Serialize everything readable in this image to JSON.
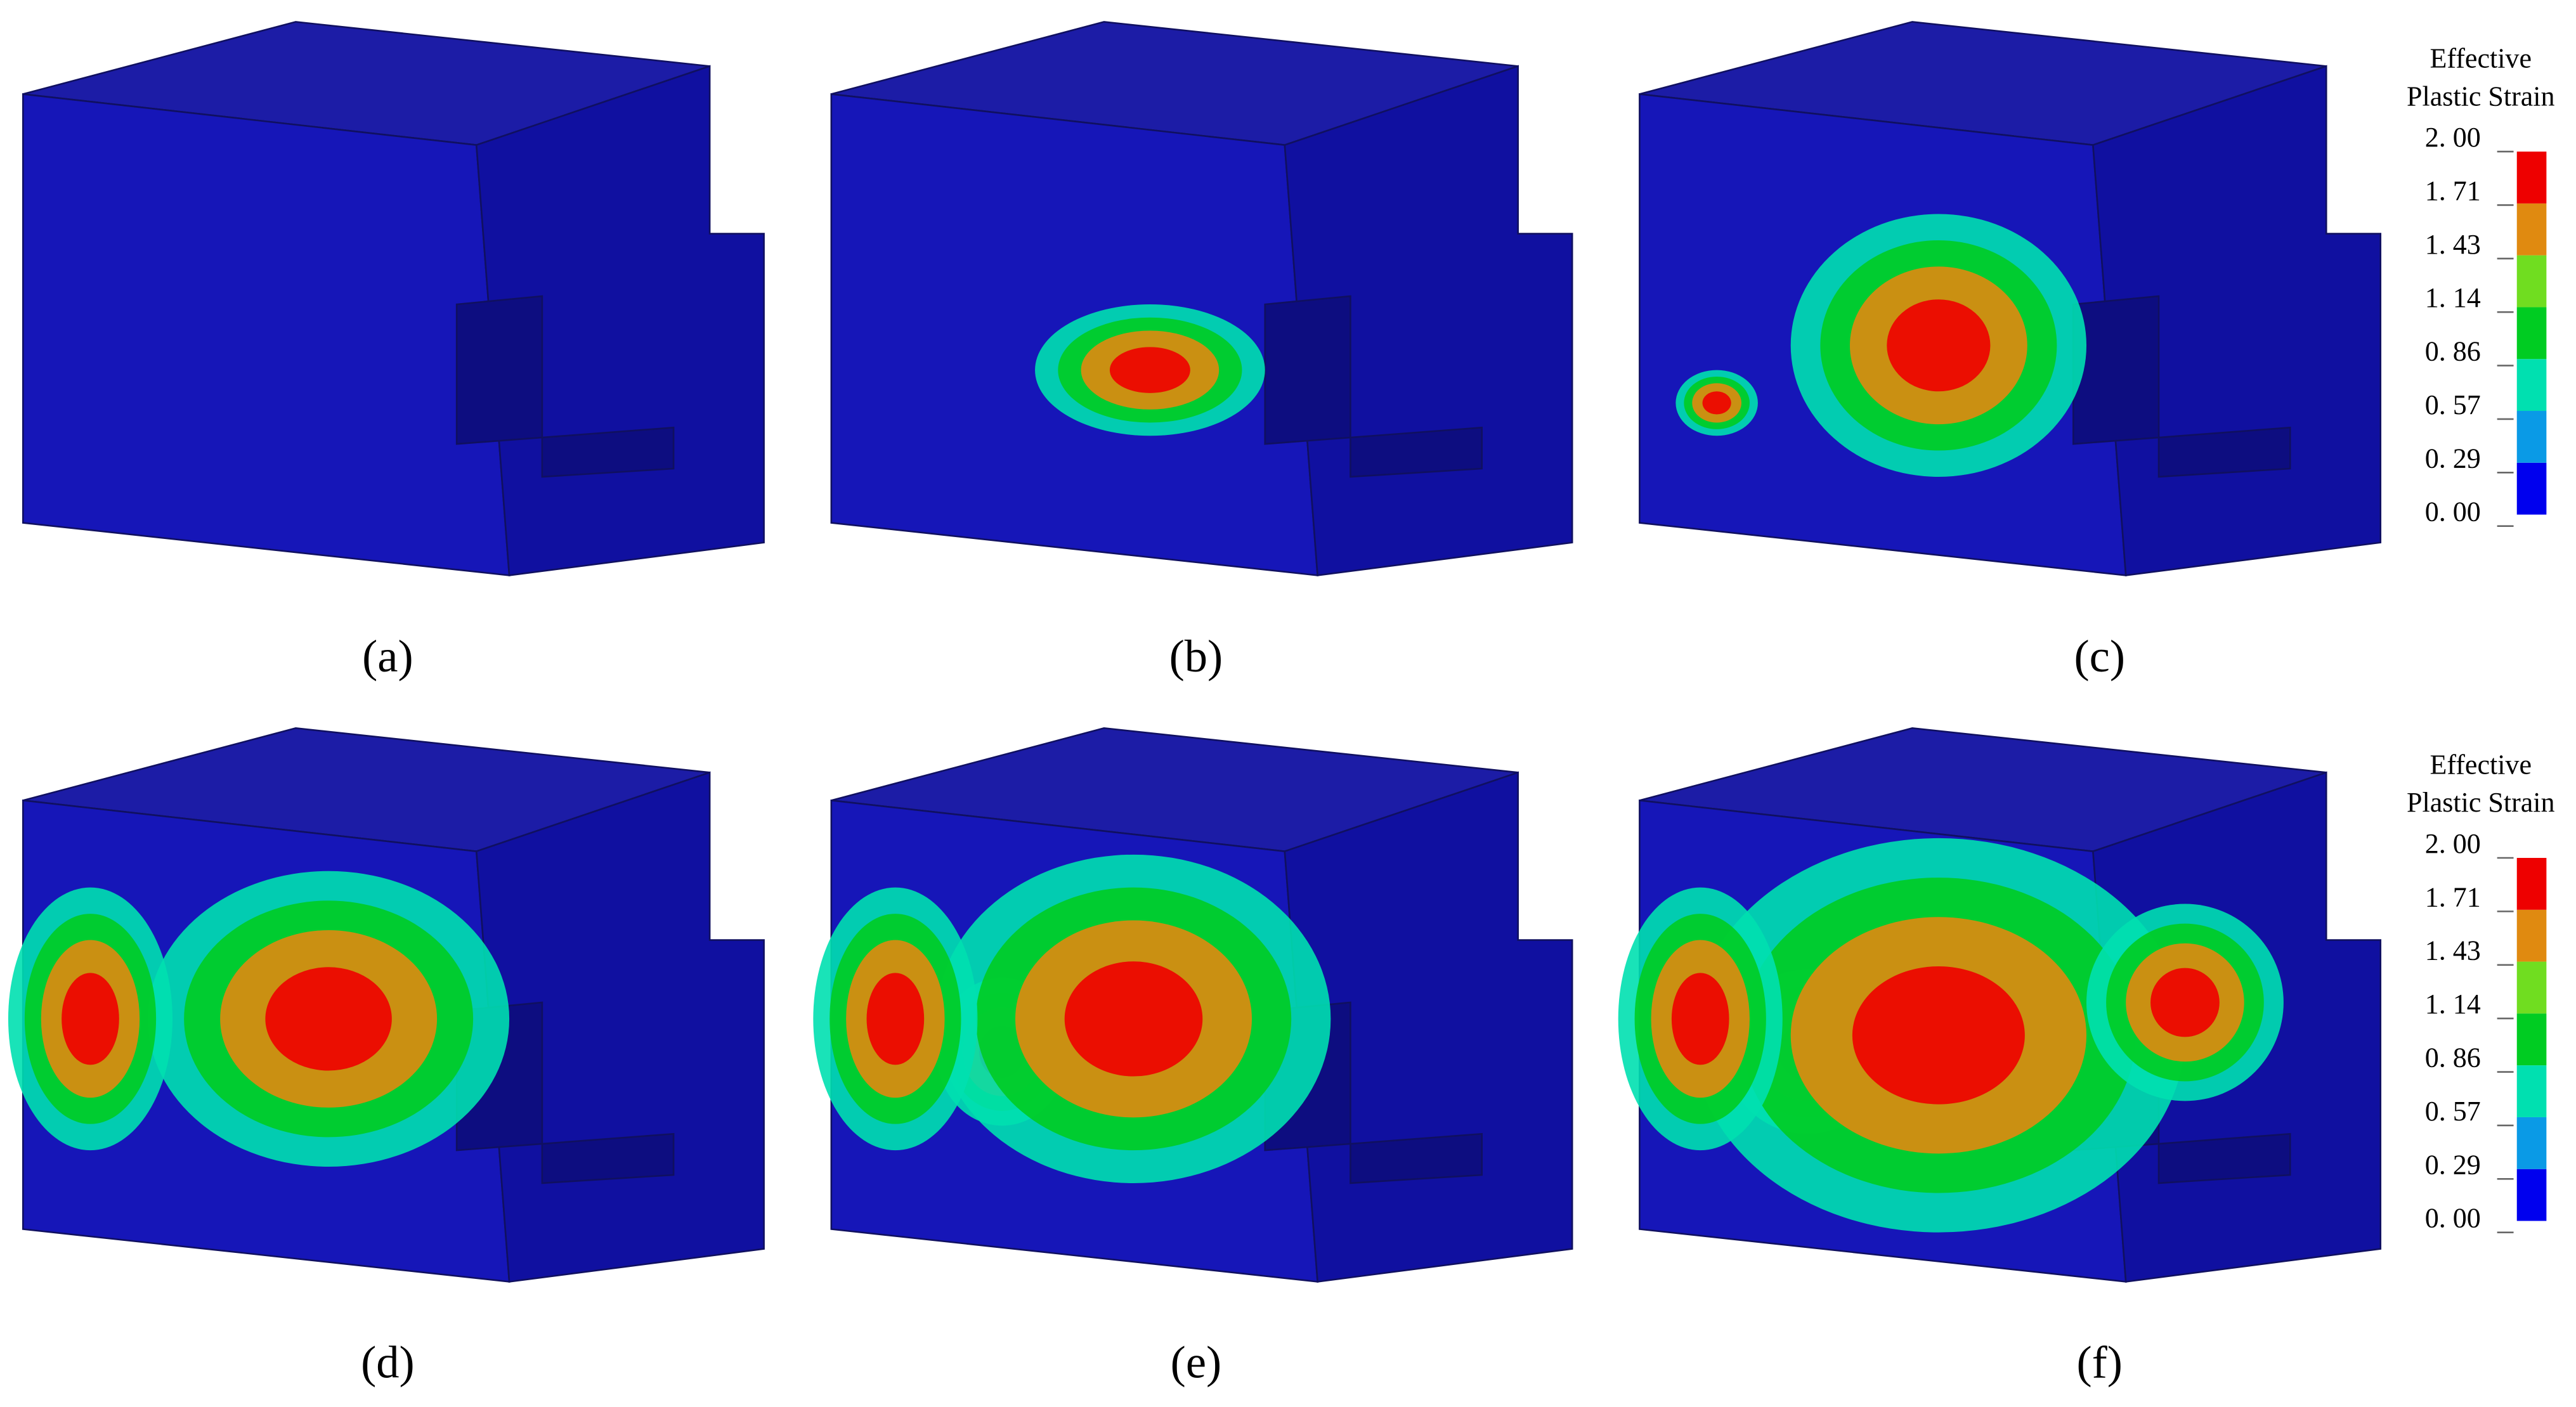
{
  "panels": [
    {
      "label": "(a)"
    },
    {
      "label": "(b)"
    },
    {
      "label": "(c)"
    },
    {
      "label": "(d)"
    },
    {
      "label": "(e)"
    },
    {
      "label": "(f)"
    }
  ],
  "legends": [
    {
      "title": [
        "Effective",
        "Plastic Strain"
      ],
      "labels": [
        "2. 00",
        "1. 71",
        "1. 43",
        "1. 14",
        "0. 86",
        "0. 57",
        "0. 29",
        "0. 00"
      ]
    },
    {
      "title": [
        "Effective",
        "Plastic Strain"
      ],
      "labels": [
        "2. 00",
        "1. 71",
        "1. 43",
        "1. 14",
        "0. 86",
        "0. 57",
        "0. 29",
        "0. 00"
      ]
    }
  ]
}
